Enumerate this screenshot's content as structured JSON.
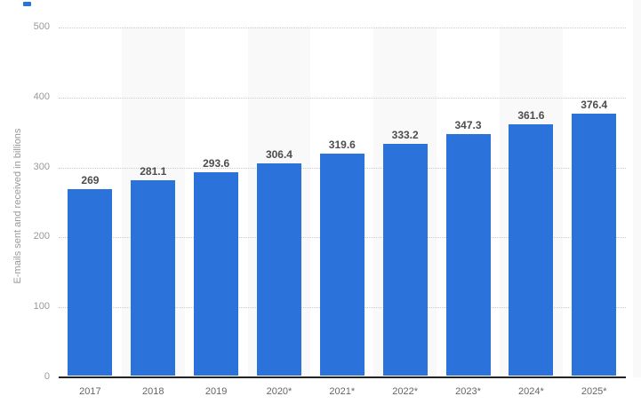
{
  "chart_data": {
    "type": "bar",
    "title": "",
    "xlabel": "",
    "ylabel": "E-mails sent and received in billions",
    "categories": [
      "2017",
      "2018",
      "2019",
      "2020*",
      "2021*",
      "2022*",
      "2023*",
      "2024*",
      "2025*"
    ],
    "values": [
      269,
      281.1,
      293.6,
      306.4,
      319.6,
      333.2,
      347.3,
      361.6,
      376.4
    ],
    "value_labels": [
      "269",
      "281.1",
      "293.6",
      "306.4",
      "319.6",
      "333.2",
      "347.3",
      "361.6",
      "376.4"
    ],
    "ylim": [
      0,
      500
    ],
    "yticks": [
      0,
      100,
      200,
      300,
      400,
      500
    ],
    "grid": "horizontal-dotted",
    "legend": "none",
    "colors": {
      "bar": "#2b72da",
      "band": "#f9f9f9",
      "gridline": "#cccccc",
      "axis_line": "#222222",
      "tick_label": "#999999",
      "x_label": "#666666",
      "value_label": "#4d4d4d",
      "y_title": "#999999"
    }
  }
}
